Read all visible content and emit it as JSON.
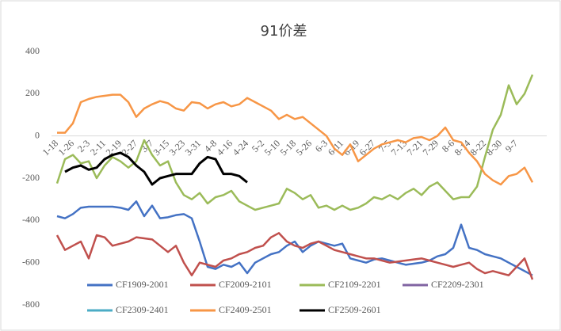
{
  "chart_data": {
    "type": "line",
    "title": "91价差",
    "categories": [
      "1-18",
      null,
      "1-26",
      null,
      "2-3",
      null,
      "2-11",
      null,
      "2-19",
      null,
      "2-27",
      null,
      "3-7",
      null,
      "3-15",
      null,
      "3-23",
      null,
      "3-31",
      null,
      "4-8",
      null,
      "4-16",
      null,
      "4-24",
      null,
      "5-2",
      null,
      "5-10",
      null,
      "5-18",
      null,
      "5-26",
      null,
      "6-3",
      null,
      "6-11",
      null,
      "6-19",
      null,
      "6-27",
      null,
      "7-5",
      null,
      "7-13",
      null,
      "7-21",
      null,
      "7-29",
      null,
      "8-6",
      null,
      "8-14",
      null,
      "8-22",
      null,
      "8-30",
      null,
      "9-7",
      null,
      null
    ],
    "ylim": [
      -800,
      400
    ],
    "yticks": [
      -800,
      -600,
      -400,
      -200,
      0,
      200,
      400
    ],
    "grid": false,
    "legend": "bottom",
    "series": [
      {
        "name": "CF1909-2001",
        "color": "#4472c4",
        "values": [
          -380,
          -390,
          -370,
          -340,
          -335,
          -335,
          -335,
          -335,
          -340,
          -350,
          -310,
          -380,
          -330,
          -390,
          -385,
          -375,
          -370,
          -390,
          -500,
          -620,
          -630,
          -610,
          -620,
          -600,
          -650,
          -600,
          -580,
          -560,
          -550,
          -520,
          -500,
          -550,
          -520,
          -500,
          -510,
          -520,
          -510,
          -580,
          -590,
          -600,
          -585,
          -580,
          -590,
          -600,
          -610,
          -605,
          -600,
          -590,
          -570,
          -560,
          -530,
          -420,
          -530,
          -540,
          -560,
          -570,
          -580,
          -600,
          -620,
          -640,
          -660
        ]
      },
      {
        "name": "CF2009-2101",
        "color": "#c0504d",
        "values": [
          -470,
          -540,
          -520,
          -500,
          -580,
          -470,
          -480,
          -520,
          -510,
          -500,
          -480,
          -485,
          -490,
          -520,
          -550,
          -520,
          -600,
          -660,
          -600,
          -610,
          -620,
          -590,
          -580,
          -560,
          -550,
          -530,
          -520,
          -480,
          -460,
          -500,
          -520,
          -530,
          -510,
          -500,
          -520,
          -540,
          -550,
          -560,
          -570,
          -580,
          -580,
          -590,
          -600,
          -595,
          -590,
          -585,
          -580,
          -590,
          -600,
          -610,
          -620,
          -610,
          -600,
          -630,
          -650,
          -640,
          -650,
          -660,
          -620,
          -580,
          -680
        ]
      },
      {
        "name": "CF2109-2201",
        "color": "#9bbb59",
        "values": [
          -225,
          -110,
          -90,
          -130,
          -120,
          -200,
          -140,
          -100,
          -120,
          -150,
          -120,
          -20,
          -90,
          -140,
          -120,
          -220,
          -280,
          -300,
          -270,
          -320,
          -290,
          -280,
          -260,
          -310,
          -330,
          -350,
          -340,
          -330,
          -320,
          -250,
          -270,
          -300,
          -280,
          -340,
          -330,
          -350,
          -330,
          -350,
          -340,
          -320,
          -290,
          -300,
          -280,
          -300,
          -270,
          -250,
          -280,
          -240,
          -220,
          -260,
          -300,
          -290,
          -290,
          -240,
          -100,
          30,
          100,
          240,
          150,
          200,
          290
        ]
      },
      {
        "name": "CF2209-2301",
        "color": "#8064a2",
        "values": [
          null,
          null,
          null,
          null,
          null,
          null,
          null,
          null,
          null,
          null,
          null,
          null,
          null,
          null,
          null,
          null,
          null,
          null,
          null,
          null,
          null,
          null,
          null,
          null,
          null,
          null,
          null,
          null,
          null,
          null,
          null,
          null,
          null,
          null,
          null,
          null,
          null,
          null,
          null,
          null,
          null,
          null,
          null,
          null,
          null,
          null,
          null,
          null,
          null,
          null,
          null,
          null,
          null,
          null,
          null,
          null,
          null,
          null,
          null,
          null,
          null
        ]
      },
      {
        "name": "CF2309-2401",
        "color": "#4bacc6",
        "values": [
          null,
          null,
          null,
          null,
          null,
          null,
          null,
          null,
          null,
          null,
          null,
          null,
          null,
          null,
          null,
          null,
          null,
          null,
          null,
          null,
          null,
          null,
          null,
          null,
          null,
          null,
          null,
          null,
          null,
          null,
          null,
          null,
          null,
          null,
          null,
          null,
          null,
          null,
          null,
          null,
          null,
          null,
          null,
          null,
          null,
          null,
          null,
          null,
          null,
          null,
          null,
          null,
          null,
          null,
          null,
          null,
          null,
          null,
          null,
          null,
          null
        ]
      },
      {
        "name": "CF2409-2501",
        "color": "#f79646",
        "values": [
          15,
          15,
          60,
          160,
          175,
          185,
          190,
          195,
          195,
          160,
          90,
          130,
          150,
          165,
          155,
          130,
          120,
          160,
          155,
          130,
          150,
          160,
          140,
          150,
          180,
          160,
          140,
          120,
          80,
          100,
          80,
          90,
          60,
          30,
          0,
          -60,
          -90,
          -40,
          -120,
          -90,
          -60,
          -40,
          -30,
          -20,
          -30,
          -10,
          -5,
          -20,
          0,
          40,
          -20,
          -30,
          -80,
          -120,
          -180,
          -210,
          -230,
          -190,
          -180,
          -150,
          -220
        ]
      },
      {
        "name": "CF2509-2601",
        "color": "#000000",
        "values": [
          null,
          -170,
          -150,
          -140,
          -160,
          -150,
          -110,
          -90,
          -80,
          -100,
          -140,
          -170,
          -230,
          -200,
          -190,
          -180,
          -180,
          -180,
          -130,
          -100,
          -110,
          -180,
          -180,
          -190,
          -220,
          null,
          null,
          null,
          null,
          null,
          null,
          null,
          null,
          null,
          null,
          null,
          null,
          null,
          null,
          null,
          null,
          null,
          null,
          null,
          null,
          null,
          null,
          null,
          null,
          null,
          null,
          null,
          null,
          null,
          null,
          null,
          null,
          null,
          null,
          null,
          null
        ]
      }
    ]
  }
}
